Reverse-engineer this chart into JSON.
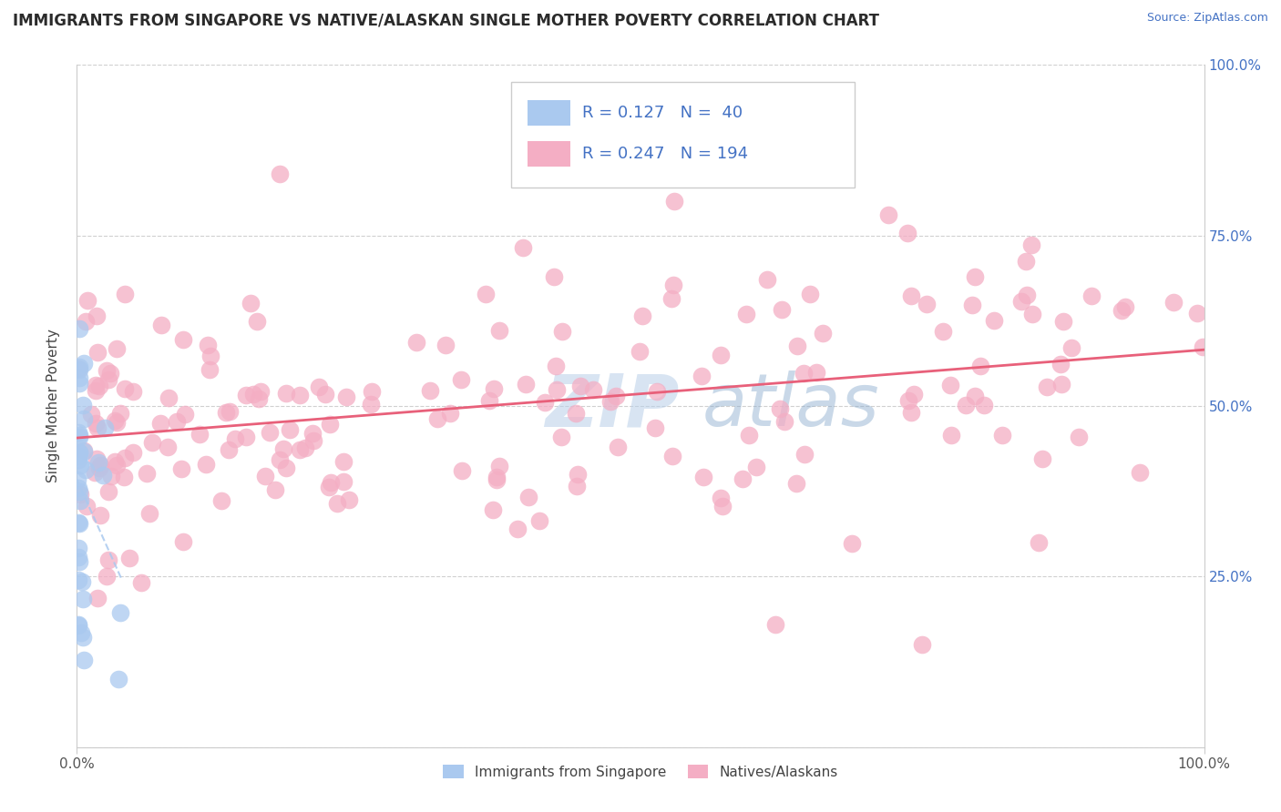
{
  "title": "IMMIGRANTS FROM SINGAPORE VS NATIVE/ALASKAN SINGLE MOTHER POVERTY CORRELATION CHART",
  "source": "Source: ZipAtlas.com",
  "ylabel": "Single Mother Poverty",
  "xlim": [
    0,
    1.0
  ],
  "ylim": [
    0,
    1.0
  ],
  "title_color": "#2b2b2b",
  "title_fontsize": 12,
  "source_color": "#4472c4",
  "blue_color": "#aac9ef",
  "pink_color": "#f4aec4",
  "blue_line_color": "#aac9ef",
  "pink_line_color": "#e8607a",
  "R_blue": 0.127,
  "N_blue": 40,
  "R_pink": 0.247,
  "N_pink": 194,
  "watermark_zip": "ZIP",
  "watermark_atlas": "atlas",
  "legend_label_blue": "Immigrants from Singapore",
  "legend_label_pink": "Natives/Alaskans",
  "grid_color": "#d0d0d0",
  "spine_color": "#cccccc",
  "right_tick_color": "#4472c4"
}
